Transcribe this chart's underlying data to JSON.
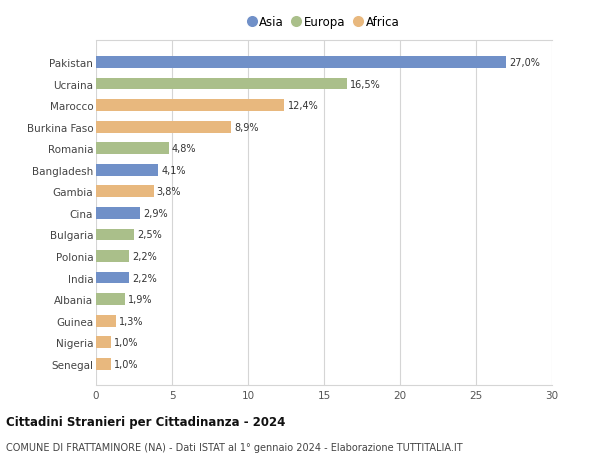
{
  "countries": [
    "Pakistan",
    "Ucraina",
    "Marocco",
    "Burkina Faso",
    "Romania",
    "Bangladesh",
    "Gambia",
    "Cina",
    "Bulgaria",
    "Polonia",
    "India",
    "Albania",
    "Guinea",
    "Nigeria",
    "Senegal"
  ],
  "values": [
    27.0,
    16.5,
    12.4,
    8.9,
    4.8,
    4.1,
    3.8,
    2.9,
    2.5,
    2.2,
    2.2,
    1.9,
    1.3,
    1.0,
    1.0
  ],
  "labels": [
    "27,0%",
    "16,5%",
    "12,4%",
    "8,9%",
    "4,8%",
    "4,1%",
    "3,8%",
    "2,9%",
    "2,5%",
    "2,2%",
    "2,2%",
    "1,9%",
    "1,3%",
    "1,0%",
    "1,0%"
  ],
  "continents": [
    "Asia",
    "Europa",
    "Africa",
    "Africa",
    "Europa",
    "Asia",
    "Africa",
    "Asia",
    "Europa",
    "Europa",
    "Asia",
    "Europa",
    "Africa",
    "Africa",
    "Africa"
  ],
  "colors": {
    "Asia": "#7090c8",
    "Europa": "#aabf8a",
    "Africa": "#e8b87e"
  },
  "legend_order": [
    "Asia",
    "Europa",
    "Africa"
  ],
  "title1": "Cittadini Stranieri per Cittadinanza - 2024",
  "title2": "COMUNE DI FRATTAMINORE (NA) - Dati ISTAT al 1° gennaio 2024 - Elaborazione TUTTITALIA.IT",
  "xlim": [
    0,
    30
  ],
  "xticks": [
    0,
    5,
    10,
    15,
    20,
    25,
    30
  ],
  "background_color": "#ffffff",
  "grid_color": "#d5d5d5",
  "bar_height": 0.55
}
